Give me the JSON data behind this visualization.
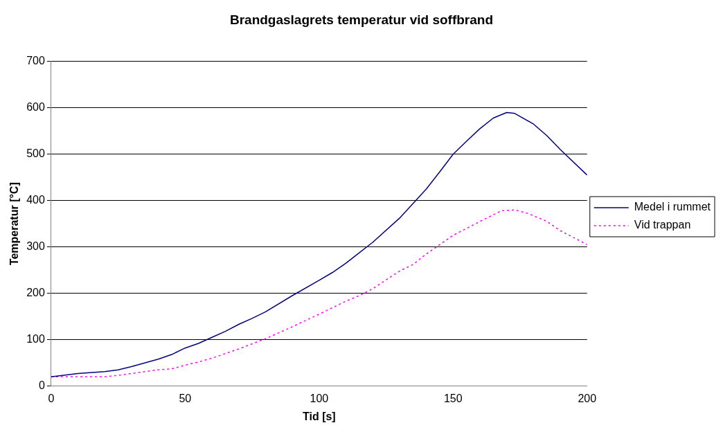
{
  "chart_data": {
    "type": "line",
    "title": "Brandgaslagrets temperatur vid soffbrand",
    "xlabel": "Tid [s]",
    "ylabel": "Temperatur [°C]",
    "xlim": [
      0,
      200
    ],
    "xticks": [
      0,
      50,
      100,
      150,
      200
    ],
    "ylim": [
      0,
      700
    ],
    "yticks": [
      0,
      100,
      200,
      300,
      400,
      500,
      600,
      700
    ],
    "grid": "y",
    "legend": "right",
    "marker": "none",
    "series": [
      {
        "name": "Medel i rummet",
        "color": "#000080",
        "line_style": "solid",
        "x": [
          0,
          10,
          20,
          25,
          30,
          40,
          45,
          50,
          55,
          60,
          65,
          70,
          75,
          80,
          90,
          100,
          105,
          110,
          120,
          130,
          140,
          145,
          150,
          155,
          160,
          165,
          170,
          173,
          180,
          185,
          190,
          200
        ],
        "values": [
          20,
          27,
          31,
          35,
          42,
          58,
          68,
          82,
          92,
          105,
          118,
          133,
          146,
          160,
          195,
          228,
          245,
          265,
          310,
          362,
          425,
          462,
          500,
          528,
          555,
          578,
          590,
          588,
          565,
          540,
          510,
          455
        ]
      },
      {
        "name": "Vid trappan",
        "color": "#ff00ff",
        "line_style": "dotted",
        "x": [
          0,
          20,
          25,
          30,
          40,
          45,
          50,
          55,
          60,
          70,
          80,
          90,
          100,
          110,
          115,
          120,
          130,
          135,
          140,
          150,
          160,
          168,
          173,
          178,
          185,
          190,
          200
        ],
        "values": [
          20,
          20,
          23,
          27,
          35,
          37,
          45,
          52,
          60,
          80,
          102,
          128,
          155,
          183,
          195,
          210,
          248,
          262,
          285,
          325,
          355,
          378,
          380,
          372,
          355,
          335,
          305
        ]
      }
    ]
  }
}
